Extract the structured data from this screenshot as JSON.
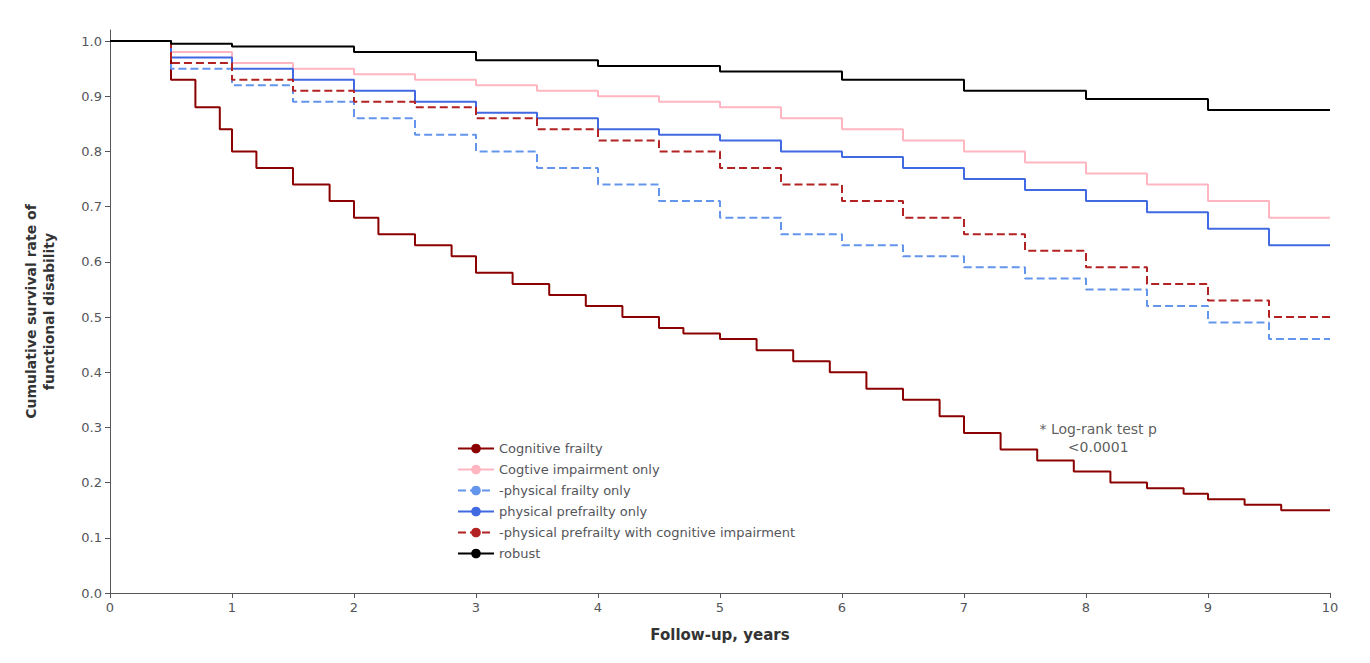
{
  "chart_data": {
    "type": "line",
    "title": "",
    "xlabel": "Follow-up, years",
    "ylabel": "Cumulative survival rate of\nfunctional disability",
    "xlim": [
      0,
      10
    ],
    "ylim": [
      0,
      1.02
    ],
    "xticks": [
      0,
      1,
      2,
      3,
      4,
      5,
      6,
      7,
      8,
      9,
      10
    ],
    "yticks": [
      {
        "value": 0,
        "label": "0.0"
      },
      0.1,
      0.2,
      0.3,
      0.4,
      0.5,
      0.6,
      0.7,
      0.8,
      0.9,
      {
        "value": 1,
        "label": "1.0"
      }
    ],
    "grid": false,
    "legend": "lower left",
    "series": [
      {
        "name": "Cognitive frailty",
        "color": "#8B0000",
        "line_style": "solid",
        "x": [
          0,
          0.5,
          0.5,
          0.7,
          0.7,
          0.9,
          0.9,
          1.0,
          1.0,
          1.2,
          1.2,
          1.5,
          1.5,
          1.8,
          1.8,
          2.0,
          2.0,
          2.2,
          2.2,
          2.5,
          2.5,
          2.8,
          2.8,
          3.0,
          3.0,
          3.3,
          3.3,
          3.6,
          3.6,
          3.9,
          3.9,
          4.2,
          4.2,
          4.5,
          4.5,
          4.7,
          4.7,
          5.0,
          5.0,
          5.3,
          5.3,
          5.6,
          5.6,
          5.9,
          5.9,
          6.2,
          6.2,
          6.5,
          6.5,
          6.8,
          6.8,
          7.0,
          7.0,
          7.3,
          7.3,
          7.6,
          7.6,
          7.9,
          7.9,
          8.2,
          8.2,
          8.5,
          8.5,
          8.8,
          8.8,
          9.0,
          9.0,
          9.3,
          9.3,
          9.6,
          9.6,
          10.0
        ],
        "values": [
          1.0,
          1.0,
          0.93,
          0.93,
          0.88,
          0.88,
          0.84,
          0.84,
          0.8,
          0.8,
          0.77,
          0.77,
          0.74,
          0.74,
          0.71,
          0.71,
          0.68,
          0.68,
          0.65,
          0.65,
          0.63,
          0.63,
          0.61,
          0.61,
          0.58,
          0.58,
          0.56,
          0.56,
          0.54,
          0.54,
          0.52,
          0.52,
          0.5,
          0.5,
          0.48,
          0.48,
          0.47,
          0.47,
          0.46,
          0.46,
          0.44,
          0.44,
          0.42,
          0.42,
          0.4,
          0.4,
          0.37,
          0.37,
          0.35,
          0.35,
          0.32,
          0.32,
          0.29,
          0.29,
          0.26,
          0.26,
          0.24,
          0.24,
          0.22,
          0.22,
          0.2,
          0.2,
          0.19,
          0.19,
          0.18,
          0.18,
          0.17,
          0.17,
          0.16,
          0.16,
          0.15,
          0.15
        ]
      },
      {
        "name": "Cogtive impairment only",
        "color": "#FFB6C1",
        "line_style": "solid",
        "x": [
          0,
          0.5,
          0.5,
          1.0,
          1.0,
          1.5,
          1.5,
          2.0,
          2.0,
          2.5,
          2.5,
          3.0,
          3.0,
          3.5,
          3.5,
          4.0,
          4.0,
          4.5,
          4.5,
          5.0,
          5.0,
          5.5,
          5.5,
          6.0,
          6.0,
          6.5,
          6.5,
          7.0,
          7.0,
          7.5,
          7.5,
          8.0,
          8.0,
          8.5,
          8.5,
          9.0,
          9.0,
          9.5,
          9.5,
          10.0
        ],
        "values": [
          1.0,
          1.0,
          0.98,
          0.98,
          0.96,
          0.96,
          0.95,
          0.95,
          0.94,
          0.94,
          0.93,
          0.93,
          0.92,
          0.92,
          0.91,
          0.91,
          0.9,
          0.9,
          0.89,
          0.89,
          0.88,
          0.88,
          0.86,
          0.86,
          0.84,
          0.84,
          0.82,
          0.82,
          0.8,
          0.8,
          0.78,
          0.78,
          0.76,
          0.76,
          0.74,
          0.74,
          0.71,
          0.71,
          0.68,
          0.68
        ]
      },
      {
        "name": "-physical frailty only",
        "color": "#6495ED",
        "line_style": "dashed",
        "x": [
          0,
          0.5,
          0.5,
          1.0,
          1.0,
          1.5,
          1.5,
          2.0,
          2.0,
          2.5,
          2.5,
          3.0,
          3.0,
          3.5,
          3.5,
          4.0,
          4.0,
          4.5,
          4.5,
          5.0,
          5.0,
          5.5,
          5.5,
          6.0,
          6.0,
          6.5,
          6.5,
          7.0,
          7.0,
          7.5,
          7.5,
          8.0,
          8.0,
          8.5,
          8.5,
          9.0,
          9.0,
          9.5,
          9.5,
          10.0
        ],
        "values": [
          1.0,
          1.0,
          0.95,
          0.95,
          0.92,
          0.92,
          0.89,
          0.89,
          0.86,
          0.86,
          0.83,
          0.83,
          0.8,
          0.8,
          0.77,
          0.77,
          0.74,
          0.74,
          0.71,
          0.71,
          0.68,
          0.68,
          0.65,
          0.65,
          0.63,
          0.63,
          0.61,
          0.61,
          0.59,
          0.59,
          0.57,
          0.57,
          0.55,
          0.55,
          0.52,
          0.52,
          0.49,
          0.49,
          0.46,
          0.46
        ]
      },
      {
        "name": "physical prefrailty only",
        "color": "#4169E1",
        "line_style": "solid",
        "x": [
          0,
          0.5,
          0.5,
          1.0,
          1.0,
          1.5,
          1.5,
          2.0,
          2.0,
          2.5,
          2.5,
          3.0,
          3.0,
          3.5,
          3.5,
          4.0,
          4.0,
          4.5,
          4.5,
          5.0,
          5.0,
          5.5,
          5.5,
          6.0,
          6.0,
          6.5,
          6.5,
          7.0,
          7.0,
          7.5,
          7.5,
          8.0,
          8.0,
          8.5,
          8.5,
          9.0,
          9.0,
          9.5,
          9.5,
          10.0
        ],
        "values": [
          1.0,
          1.0,
          0.97,
          0.97,
          0.95,
          0.95,
          0.93,
          0.93,
          0.91,
          0.91,
          0.89,
          0.89,
          0.87,
          0.87,
          0.86,
          0.86,
          0.84,
          0.84,
          0.83,
          0.83,
          0.82,
          0.82,
          0.8,
          0.8,
          0.79,
          0.79,
          0.77,
          0.77,
          0.75,
          0.75,
          0.73,
          0.73,
          0.71,
          0.71,
          0.69,
          0.69,
          0.66,
          0.66,
          0.63,
          0.63
        ]
      },
      {
        "name": "-physical prefrailty with cognitive impairment",
        "color": "#B22222",
        "line_style": "dashed",
        "x": [
          0,
          0.5,
          0.5,
          1.0,
          1.0,
          1.5,
          1.5,
          2.0,
          2.0,
          2.5,
          2.5,
          3.0,
          3.0,
          3.5,
          3.5,
          4.0,
          4.0,
          4.5,
          4.5,
          5.0,
          5.0,
          5.5,
          5.5,
          6.0,
          6.0,
          6.5,
          6.5,
          7.0,
          7.0,
          7.5,
          7.5,
          8.0,
          8.0,
          8.5,
          8.5,
          9.0,
          9.0,
          9.5,
          9.5,
          10.0
        ],
        "values": [
          1.0,
          1.0,
          0.96,
          0.96,
          0.93,
          0.93,
          0.91,
          0.91,
          0.89,
          0.89,
          0.88,
          0.88,
          0.86,
          0.86,
          0.84,
          0.84,
          0.82,
          0.82,
          0.8,
          0.8,
          0.77,
          0.77,
          0.74,
          0.74,
          0.71,
          0.71,
          0.68,
          0.68,
          0.65,
          0.65,
          0.62,
          0.62,
          0.59,
          0.59,
          0.56,
          0.56,
          0.53,
          0.53,
          0.5,
          0.5
        ]
      },
      {
        "name": "robust",
        "color": "#000000",
        "line_style": "solid",
        "x": [
          0,
          0.5,
          0.5,
          1.0,
          1.0,
          2.0,
          2.0,
          3.0,
          3.0,
          4.0,
          4.0,
          5.0,
          5.0,
          6.0,
          6.0,
          7.0,
          7.0,
          8.0,
          8.0,
          9.0,
          9.0,
          10.0
        ],
        "values": [
          1.0,
          1.0,
          0.995,
          0.995,
          0.99,
          0.99,
          0.98,
          0.98,
          0.965,
          0.965,
          0.955,
          0.955,
          0.945,
          0.945,
          0.93,
          0.93,
          0.91,
          0.91,
          0.895,
          0.895,
          0.875,
          0.875
        ]
      }
    ],
    "annotations": [
      {
        "text": "* Log-rank test p\n<0.0001",
        "x": 8.1,
        "y": 0.28
      }
    ]
  }
}
